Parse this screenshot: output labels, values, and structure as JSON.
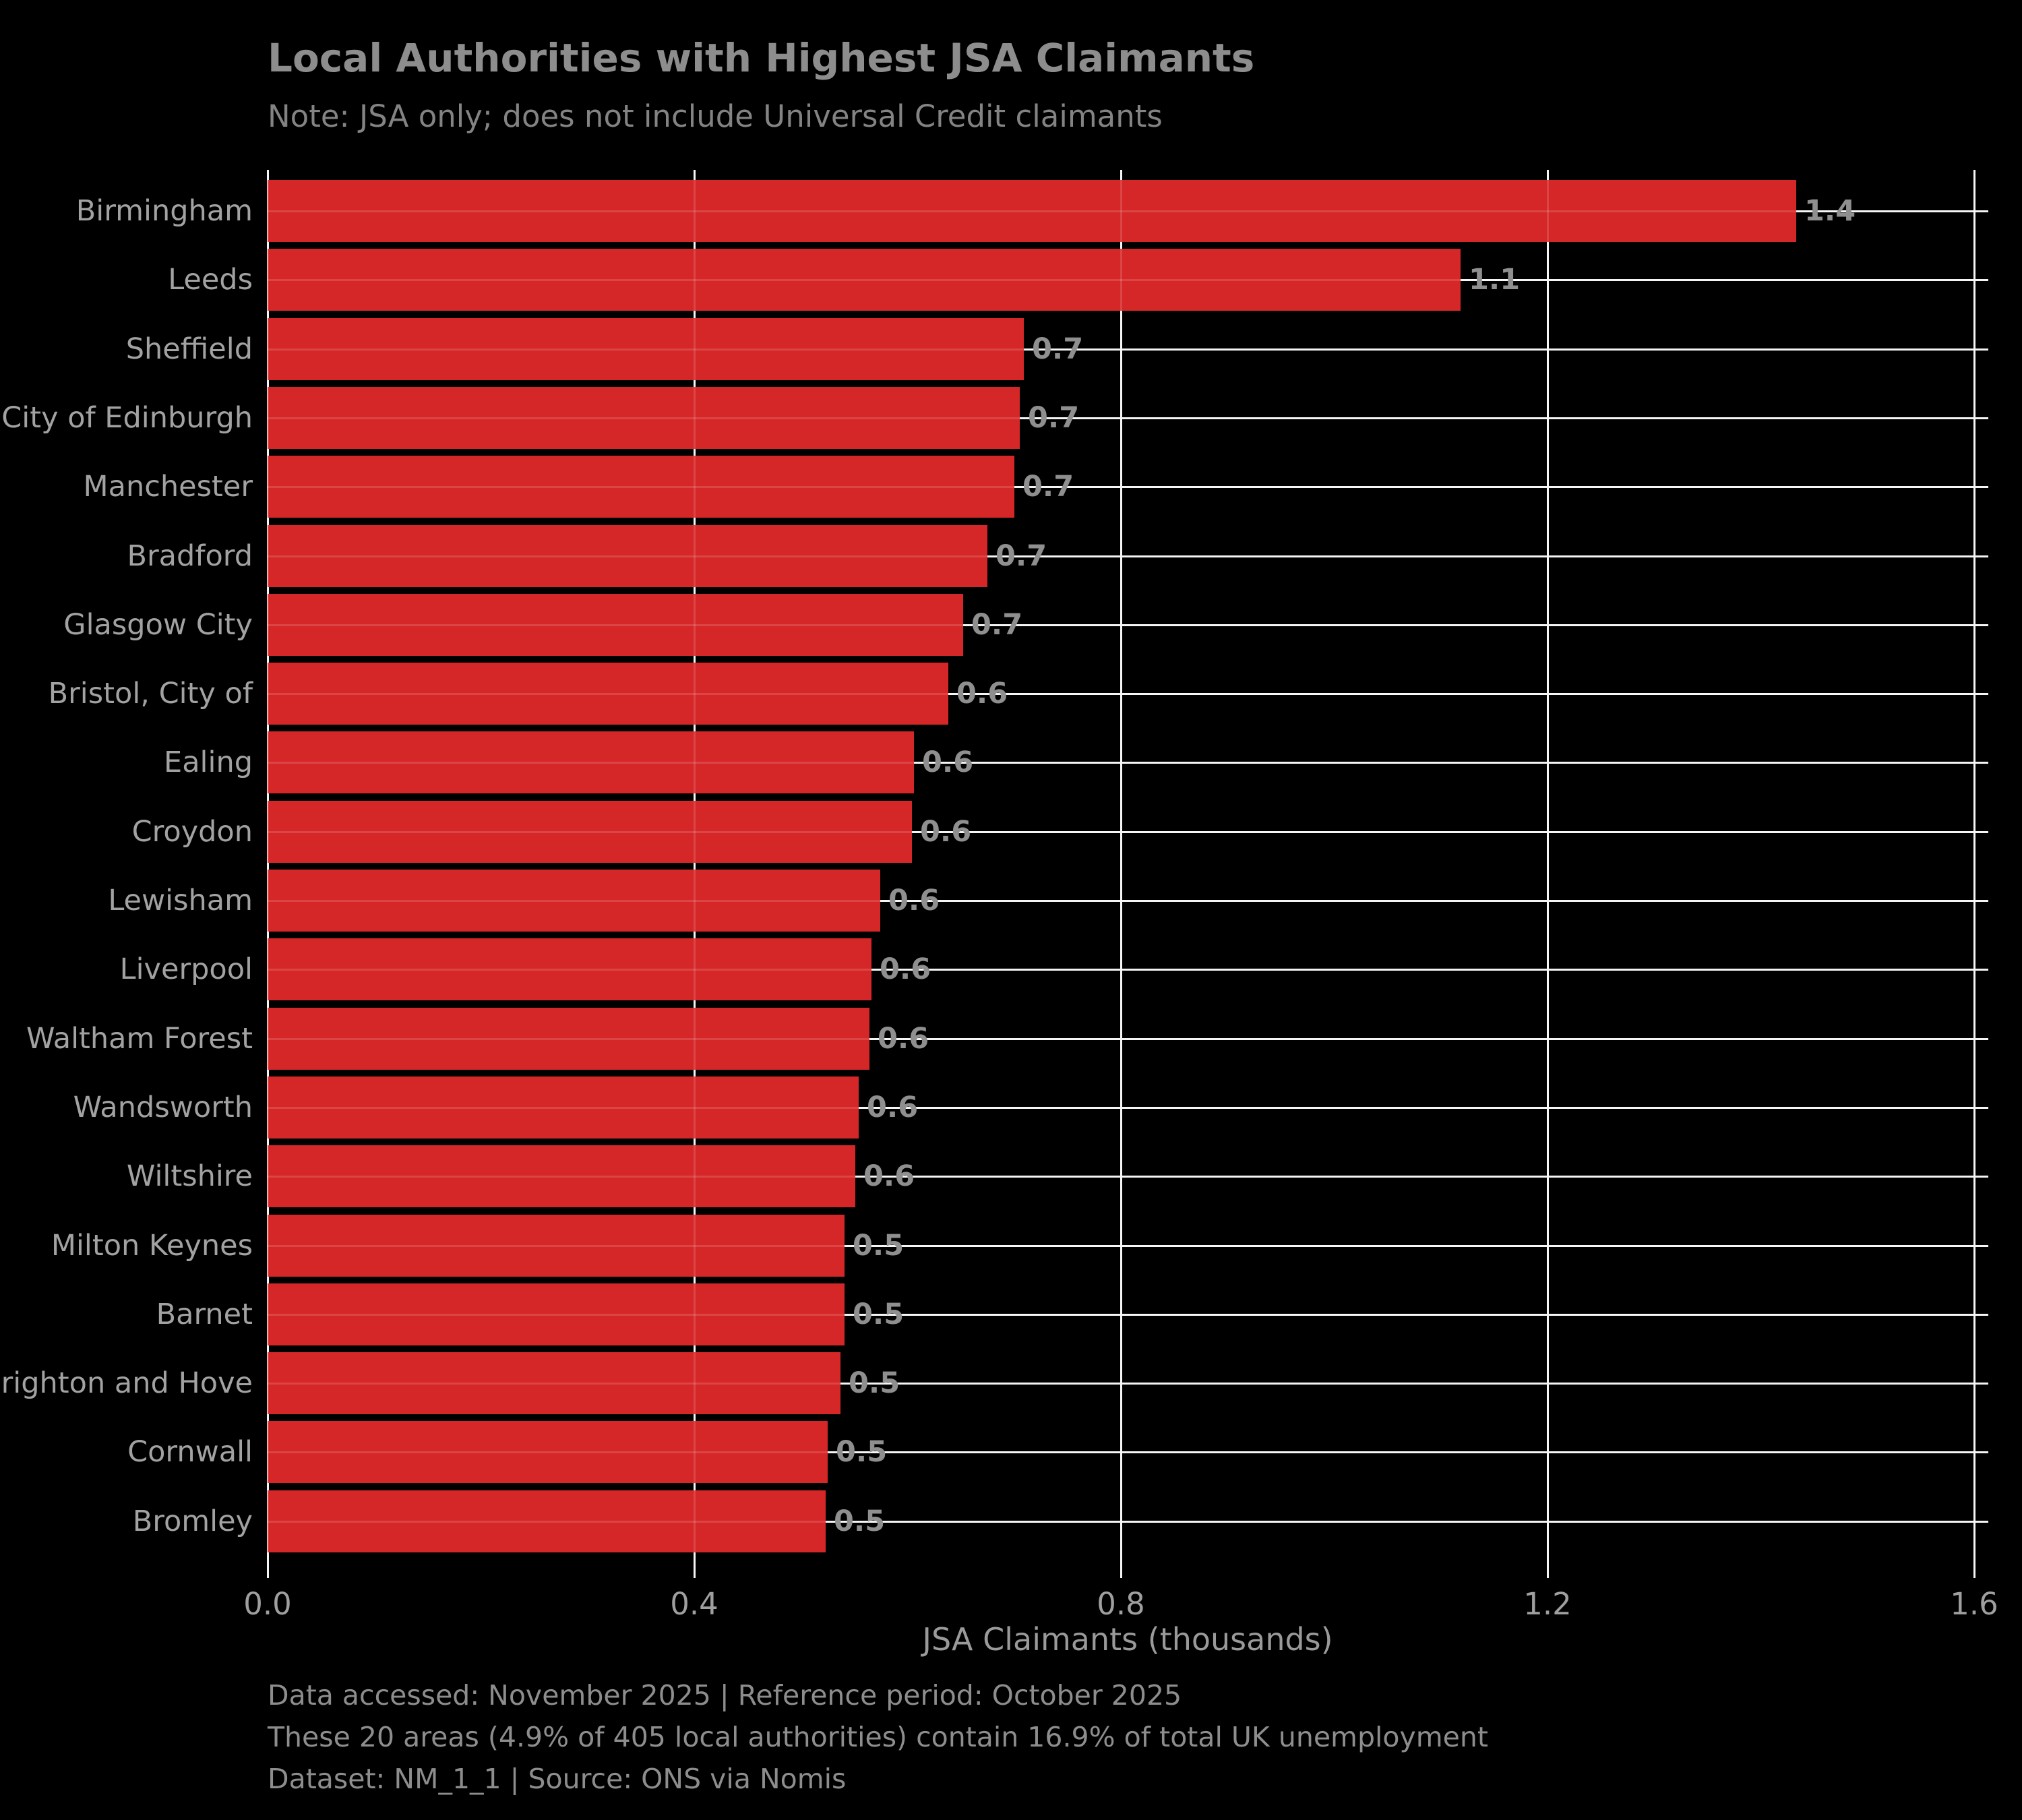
{
  "header": {
    "title": "Local Authorities with Highest JSA Claimants",
    "subtitle": "Note: JSA only; does not include Universal Credit claimants"
  },
  "chart_data": {
    "type": "bar",
    "orientation": "horizontal",
    "title": "Local Authorities with Highest JSA Claimants",
    "subtitle": "Note: JSA only; does not include Universal Credit claimants",
    "categories": [
      "Birmingham",
      "Leeds",
      "Sheffield",
      "City of Edinburgh",
      "Manchester",
      "Bradford",
      "Glasgow City",
      "Bristol, City of",
      "Ealing",
      "Croydon",
      "Lewisham",
      "Liverpool",
      "Waltham Forest",
      "Wandsworth",
      "Wiltshire",
      "Milton Keynes",
      "Barnet",
      "Brighton and Hove",
      "Cornwall",
      "Bromley"
    ],
    "values": [
      1.4,
      1.1,
      0.7,
      0.7,
      0.7,
      0.7,
      0.7,
      0.6,
      0.6,
      0.6,
      0.6,
      0.6,
      0.6,
      0.6,
      0.6,
      0.5,
      0.5,
      0.5,
      0.5,
      0.5
    ],
    "values_precise_est": [
      1.433,
      1.118,
      0.709,
      0.705,
      0.7,
      0.675,
      0.652,
      0.638,
      0.606,
      0.604,
      0.574,
      0.566,
      0.564,
      0.554,
      0.551,
      0.541,
      0.541,
      0.537,
      0.525,
      0.523
    ],
    "xlabel": "JSA Claimants (thousands)",
    "ylabel": "",
    "xticks": [
      0.0,
      0.4,
      0.8,
      1.2,
      1.6
    ],
    "xtick_labels": [
      "0.0",
      "0.4",
      "0.8",
      "1.2",
      "1.6"
    ],
    "xlim": [
      0,
      1.613
    ],
    "grid": true,
    "legend": "none",
    "bar_color": "#d62728",
    "grid_color": "#ffffff",
    "background_color": "#000000",
    "text_color": "#8d8d8d"
  },
  "footer": {
    "line1": "Data accessed: November 2025 | Reference period: October 2025",
    "line2": "These 20 areas (4.9% of 405 local authorities) contain 16.9% of total UK unemployment",
    "line3": "Dataset: NM_1_1 | Source: ONS via Nomis"
  }
}
